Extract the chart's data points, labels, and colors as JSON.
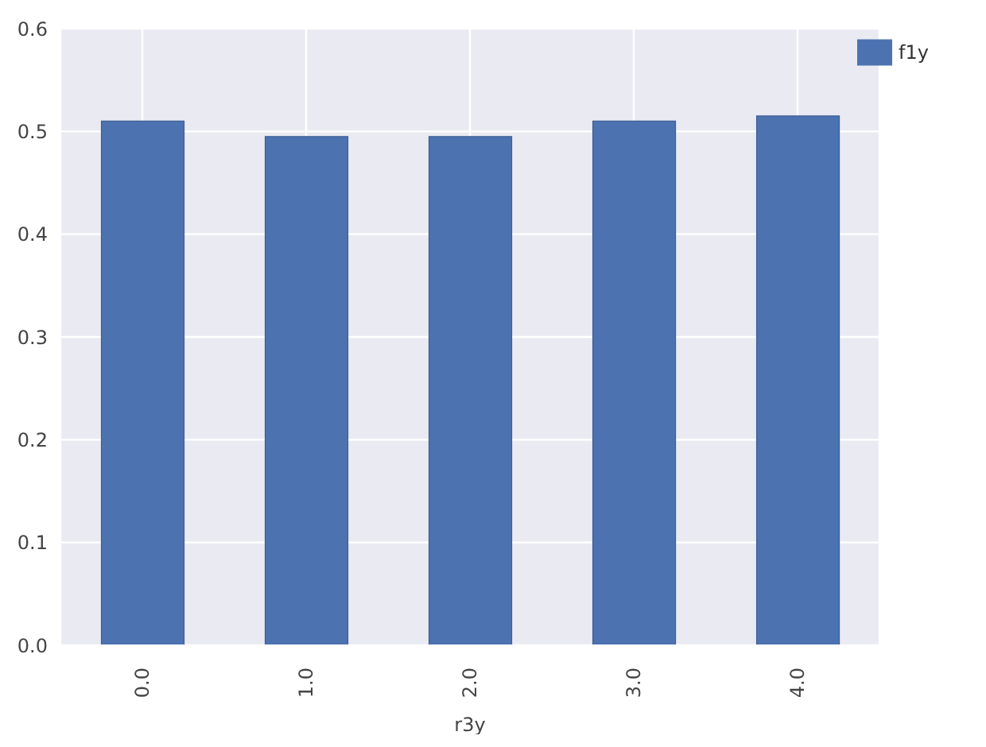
{
  "chart_data": {
    "type": "bar",
    "xlabel": "r3y",
    "categories": [
      "0.0",
      "1.0",
      "2.0",
      "3.0",
      "4.0"
    ],
    "series": [
      {
        "name": "f1y",
        "color": "#4c72b0",
        "values": [
          0.51,
          0.495,
          0.495,
          0.51,
          0.515
        ]
      }
    ],
    "ylim": [
      0,
      0.6
    ],
    "yticks": [
      {
        "value": 0,
        "label": "0.0"
      },
      {
        "value": 0.1,
        "label": "0.1"
      },
      {
        "value": 0.2,
        "label": "0.2"
      },
      {
        "value": 0.3,
        "label": "0.3"
      },
      {
        "value": 0.4,
        "label": "0.4"
      },
      {
        "value": 0.5,
        "label": "0.5"
      },
      {
        "value": 0.6,
        "label": "0.6"
      }
    ],
    "grid": true,
    "legend": "top right"
  }
}
